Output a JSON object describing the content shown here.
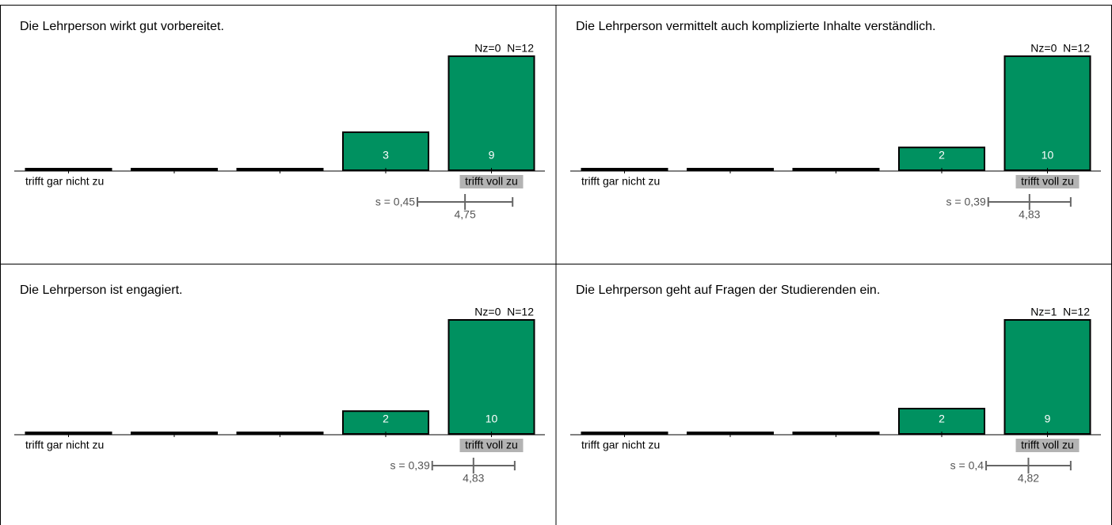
{
  "chart_data": [
    {
      "type": "bar",
      "title": "Die Lehrperson wirkt gut vorbereitet.",
      "annotation": "Nz=0  N=12",
      "values": [
        0,
        0,
        0,
        3,
        9
      ],
      "color": "#009160",
      "xlim": [
        1,
        5
      ],
      "ylim": [
        0,
        9
      ],
      "left_label": "trifft gar nicht zu",
      "right_label": "trifft voll zu",
      "mean": {
        "value": 4.75,
        "label": "4,75"
      },
      "sd": {
        "value": 0.45,
        "label": "s = 0,45"
      }
    },
    {
      "type": "bar",
      "title": "Die Lehrperson vermittelt auch komplizierte Inhalte verständlich.",
      "annotation": "Nz=0  N=12",
      "values": [
        0,
        0,
        0,
        2,
        10
      ],
      "color": "#009160",
      "xlim": [
        1,
        5
      ],
      "ylim": [
        0,
        10
      ],
      "left_label": "trifft gar nicht zu",
      "right_label": "trifft voll zu",
      "mean": {
        "value": 4.83,
        "label": "4,83"
      },
      "sd": {
        "value": 0.39,
        "label": "s = 0,39"
      }
    },
    {
      "type": "bar",
      "title": "Die Lehrperson ist engagiert.",
      "annotation": "Nz=0  N=12",
      "values": [
        0,
        0,
        0,
        2,
        10
      ],
      "color": "#009160",
      "xlim": [
        1,
        5
      ],
      "ylim": [
        0,
        10
      ],
      "left_label": "trifft gar nicht zu",
      "right_label": "trifft voll zu",
      "mean": {
        "value": 4.83,
        "label": "4,83"
      },
      "sd": {
        "value": 0.39,
        "label": "s = 0,39"
      }
    },
    {
      "type": "bar",
      "title": "Die Lehrperson geht auf Fragen der Studierenden ein.",
      "annotation": "Nz=1  N=12",
      "values": [
        0,
        0,
        0,
        2,
        9
      ],
      "color": "#009160",
      "xlim": [
        1,
        5
      ],
      "ylim": [
        0,
        9
      ],
      "left_label": "trifft gar nicht zu",
      "right_label": "trifft voll zu",
      "mean": {
        "value": 4.82,
        "label": "4,82"
      },
      "sd": {
        "value": 0.4,
        "label": "s = 0,4"
      }
    }
  ]
}
